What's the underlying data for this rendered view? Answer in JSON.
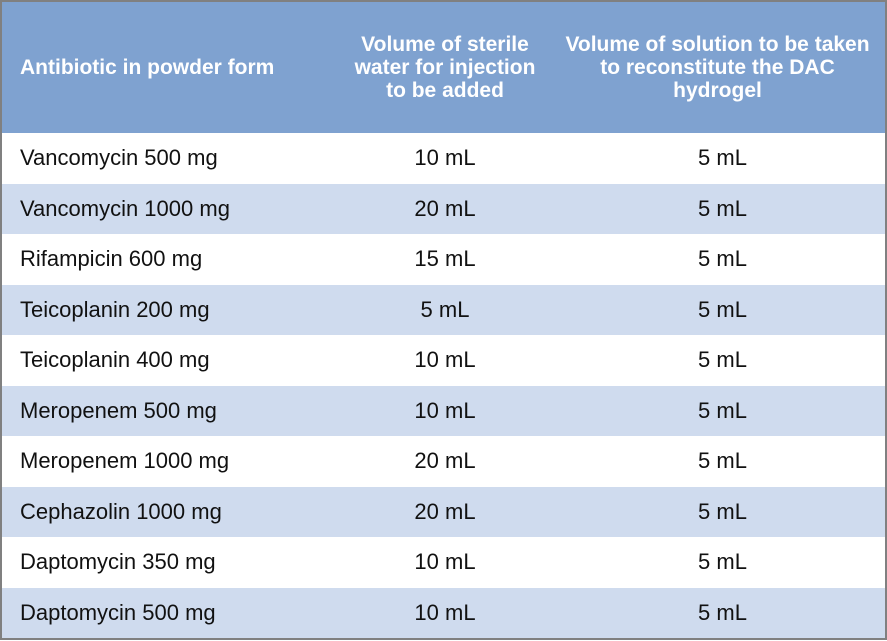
{
  "table": {
    "headers": [
      "Antibiotic in powder form",
      "Volume of sterile water for injection to be added",
      "Volume of solution to be taken to reconstitute the DAC hydrogel"
    ],
    "rows": [
      [
        "Vancomycin 500 mg",
        "10 mL",
        "5 mL"
      ],
      [
        "Vancomycin 1000 mg",
        "20 mL",
        "5 mL"
      ],
      [
        "Rifampicin 600 mg",
        "15 mL",
        "5 mL"
      ],
      [
        "Teicoplanin 200 mg",
        "5 mL",
        "5 mL"
      ],
      [
        "Teicoplanin 400 mg",
        "10 mL",
        "5 mL"
      ],
      [
        "Meropenem 500 mg",
        "10 mL",
        "5 mL"
      ],
      [
        "Meropenem 1000 mg",
        "20 mL",
        "5 mL"
      ],
      [
        "Cephazolin 1000 mg",
        "20 mL",
        "5 mL"
      ],
      [
        "Daptomycin 350 mg",
        "10 mL",
        "5 mL"
      ],
      [
        "Daptomycin 500 mg",
        "10 mL",
        "5 mL"
      ]
    ]
  },
  "colors": {
    "header_bg": "#7fa2d0",
    "alt_row_bg": "#cfdbee",
    "border": "#808080"
  }
}
